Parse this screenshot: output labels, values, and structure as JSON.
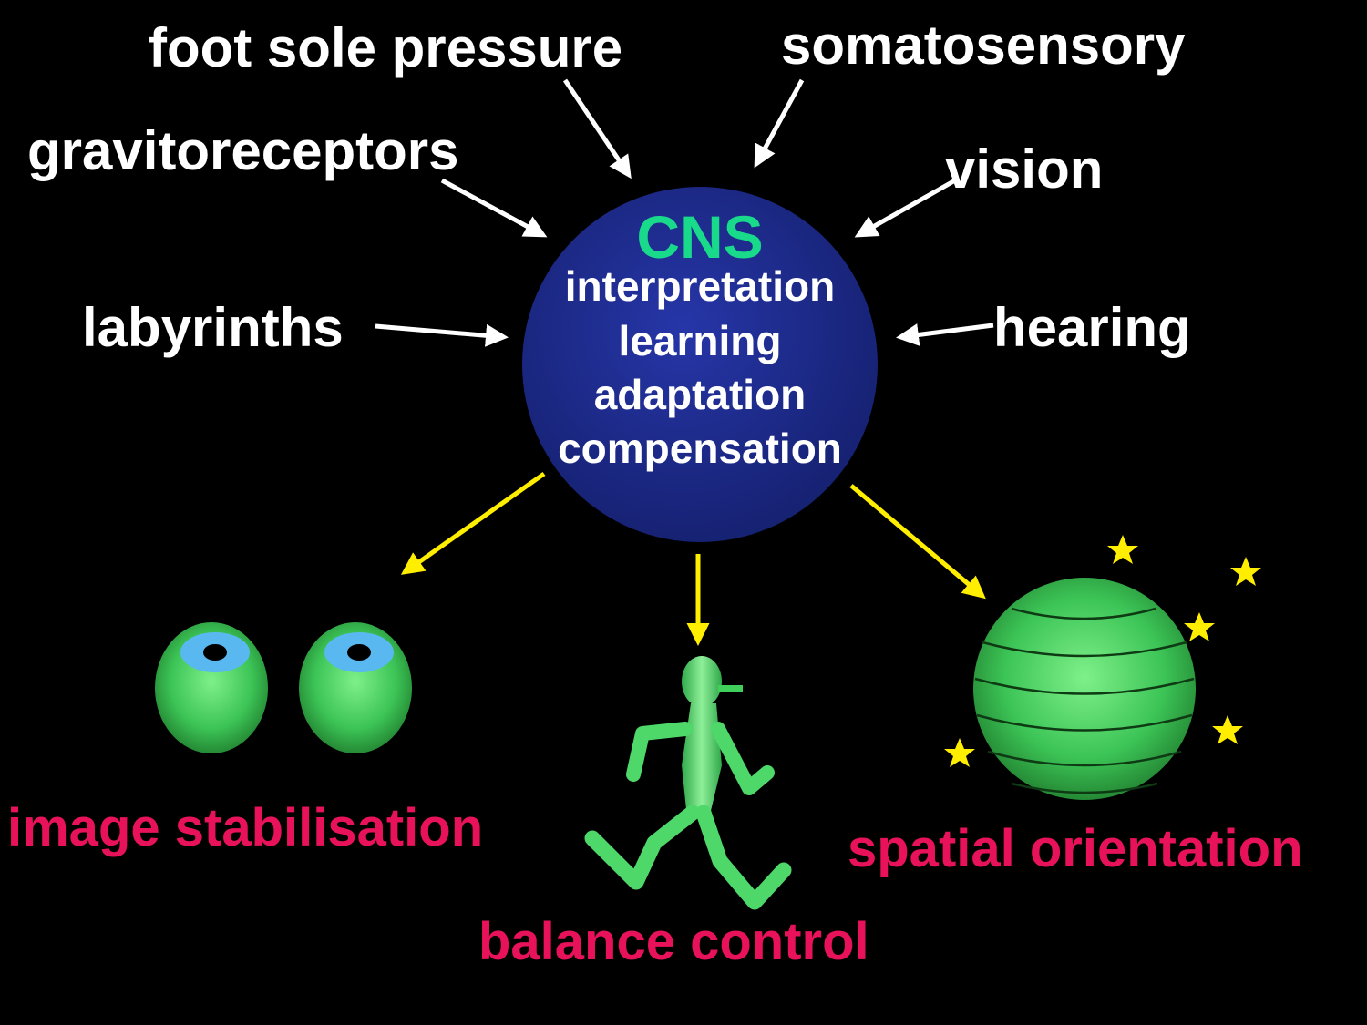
{
  "inputs": {
    "foot_sole_pressure": "foot sole pressure",
    "somatosensory": "somatosensory",
    "gravitoreceptors": "gravitoreceptors",
    "vision": "vision",
    "labyrinths": "labyrinths",
    "hearing": "hearing"
  },
  "cns": {
    "title": "CNS",
    "functions": [
      "interpretation",
      "learning",
      "adaptation",
      "compensation"
    ]
  },
  "outputs": {
    "image_stabilisation": "image stabilisation",
    "balance_control": "balance control",
    "spatial_orientation": "spatial orientation"
  },
  "colors": {
    "background": "#000000",
    "input_text": "#ffffff",
    "output_text": "#e8125a",
    "cns_fill": "#1c2a8c",
    "cns_title": "#19d98a",
    "input_arrow": "#ffffff",
    "output_arrow": "#ffee00",
    "figure_green": "#3fcf5a",
    "eye_iris": "#5ab8f0",
    "star": "#ffee00"
  },
  "icons": [
    "eyeball-icon",
    "running-man-icon",
    "globe-icon",
    "star-icon"
  ]
}
